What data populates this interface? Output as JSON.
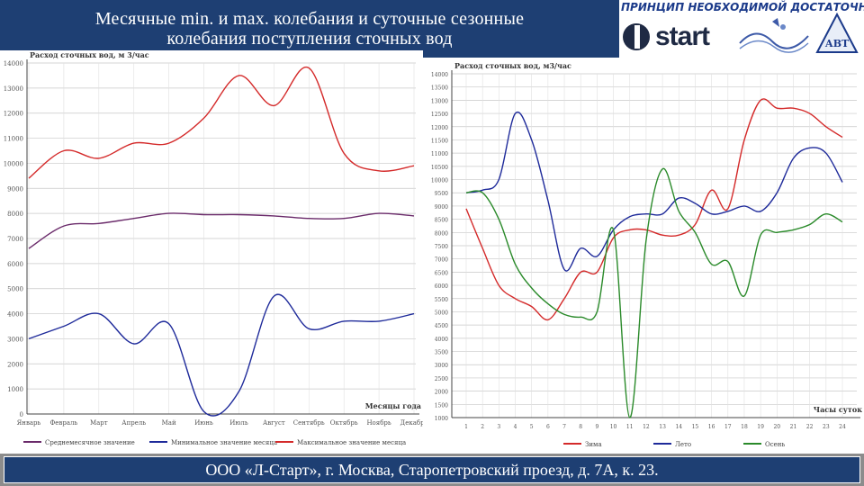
{
  "slide": {
    "title_line1": "Месячные min. и max. колебания и суточные сезонные",
    "title_line2": "колебания поступления сточных вод",
    "slogan": "ПРИНЦИП НЕОБХОДИМОЙ ДОСТАТОЧНОСТИ",
    "start_logo_text": "start",
    "avt_logo_text": "АВТ",
    "footer": "ООО «Л-Старт», г. Москва, Старопетровский проезд, д. 7А, к. 23."
  },
  "colors": {
    "title_bg": "#1e3f73",
    "footer_bg": "#8c8c8c",
    "red": "#d42a2a",
    "blue": "#1e2a9a",
    "purple": "#6a2a6a",
    "green": "#2a8a2a"
  },
  "chart_data": [
    {
      "type": "line",
      "ylabel": "Расход сточных вод, м 3/час",
      "xlabel": "Месяцы года",
      "ylim": [
        0,
        14000
      ],
      "yticks": [
        0,
        1000,
        2000,
        3000,
        4000,
        5000,
        6000,
        7000,
        8000,
        9000,
        10000,
        11000,
        12000,
        13000,
        14000
      ],
      "categories": [
        "Январь",
        "Февраль",
        "Март",
        "Апрель",
        "Май",
        "Июнь",
        "Июль",
        "Август",
        "Сентябрь",
        "Октябрь",
        "Ноябрь",
        "Декабрь"
      ],
      "grid": true,
      "legend": "bottom",
      "series": [
        {
          "name": "Среднемесячное значение",
          "color": "#6a2a6a",
          "values": [
            6600,
            7500,
            7600,
            7800,
            8000,
            7950,
            7950,
            7900,
            7800,
            7800,
            8000,
            7900
          ]
        },
        {
          "name": "Минимальное значение месяца",
          "color": "#1e2a9a",
          "values": [
            3000,
            3500,
            4000,
            2800,
            3600,
            100,
            900,
            4700,
            3400,
            3700,
            3700,
            4000
          ]
        },
        {
          "name": "Максимальное значение месяца",
          "color": "#d42a2a",
          "values": [
            9400,
            10500,
            10200,
            10800,
            10800,
            11800,
            13500,
            12300,
            13800,
            10400,
            9700,
            9900
          ]
        }
      ]
    },
    {
      "type": "line",
      "ylabel": "Расход сточных вод, м3/час",
      "xlabel": "Часы суток",
      "ylim": [
        1000,
        14000
      ],
      "yticks": [
        1000,
        1500,
        2000,
        2500,
        3000,
        3500,
        4000,
        4500,
        5000,
        5500,
        6000,
        6500,
        7000,
        7500,
        8000,
        8500,
        9000,
        9500,
        10000,
        10500,
        11000,
        11500,
        12000,
        12500,
        13000,
        13500,
        14000
      ],
      "categories": [
        "1",
        "2",
        "3",
        "4",
        "5",
        "6",
        "7",
        "8",
        "9",
        "10",
        "11",
        "12",
        "13",
        "14",
        "15",
        "16",
        "17",
        "18",
        "19",
        "20",
        "21",
        "22",
        "23",
        "24"
      ],
      "grid": true,
      "legend": "bottom",
      "series": [
        {
          "name": "Зима",
          "color": "#d42a2a",
          "values": [
            8900,
            7400,
            6000,
            5500,
            5200,
            4700,
            5500,
            6500,
            6500,
            7800,
            8100,
            8100,
            7900,
            7900,
            8300,
            9600,
            8900,
            11500,
            13000,
            12700,
            12700,
            12500,
            12000,
            11600
          ]
        },
        {
          "name": "Лето",
          "color": "#1e2a9a",
          "values": [
            9500,
            9600,
            10000,
            12500,
            11500,
            9200,
            6600,
            7400,
            7100,
            8100,
            8600,
            8700,
            8700,
            9300,
            9100,
            8700,
            8800,
            9000,
            8800,
            9500,
            10800,
            11200,
            11000,
            9900
          ]
        },
        {
          "name": "Осень",
          "color": "#2a8a2a",
          "values": [
            9500,
            9500,
            8500,
            6800,
            5900,
            5300,
            4900,
            4800,
            5000,
            8100,
            1000,
            7700,
            10400,
            8800,
            8000,
            6800,
            6900,
            5600,
            7900,
            8000,
            8100,
            8300,
            8700,
            8400
          ]
        }
      ]
    }
  ]
}
